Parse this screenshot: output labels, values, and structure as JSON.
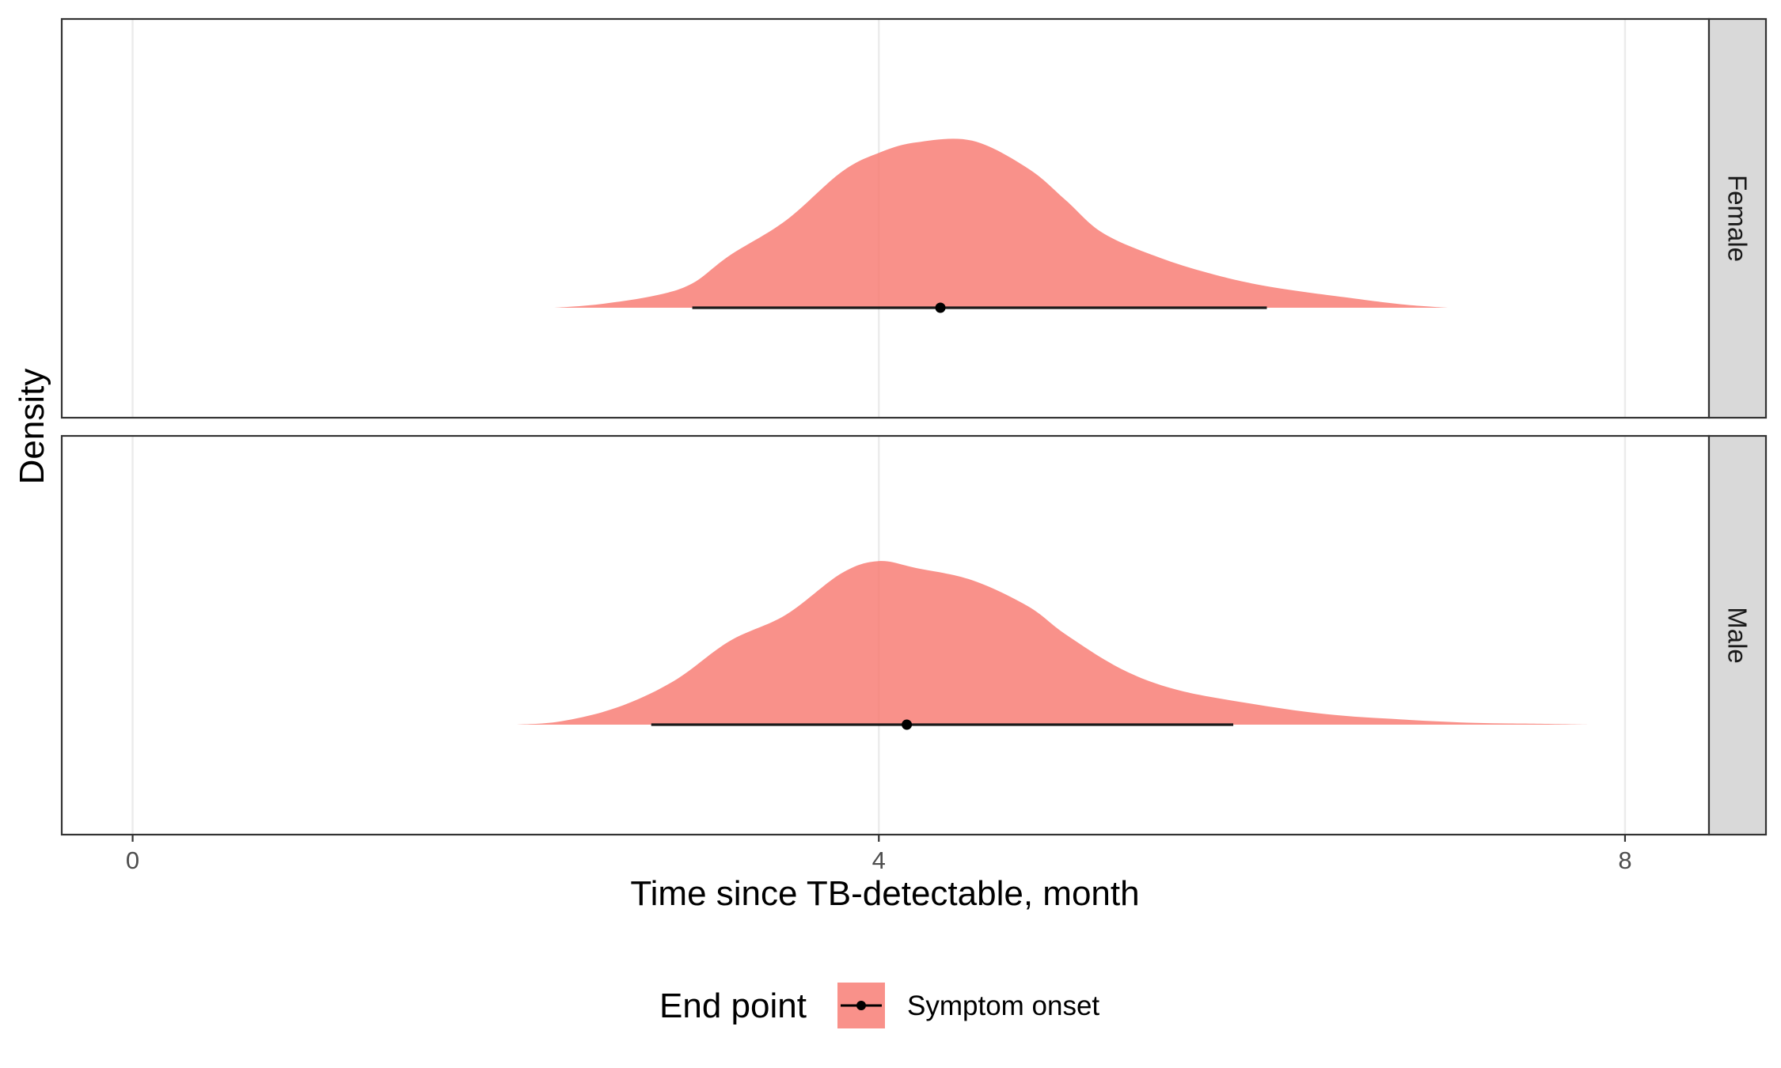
{
  "chart_data": {
    "type": "area",
    "subtype": "half-eye density (ridgeline)",
    "xlabel": "Time since TB-detectable, month",
    "ylabel": "Density",
    "xlim": [
      -0.38,
      8.45
    ],
    "xticks": [
      0,
      4,
      8
    ],
    "grid": true,
    "legend": {
      "title": "End point",
      "position": "bottom",
      "items": [
        {
          "label": "Symptom onset",
          "color": "#F8766D"
        }
      ]
    },
    "series": [
      {
        "facet": "Female",
        "fill_color": "#F8766D",
        "fill_opacity": 0.8,
        "point": 4.33,
        "interval": [
          3.0,
          6.08
        ],
        "density": {
          "x": [
            2.26,
            2.5,
            2.8,
            3.0,
            3.2,
            3.5,
            3.8,
            4.0,
            4.2,
            4.5,
            4.8,
            5.0,
            5.2,
            5.5,
            5.8,
            6.1,
            6.5,
            6.8,
            7.05
          ],
          "y": [
            0.0,
            0.02,
            0.07,
            0.14,
            0.3,
            0.5,
            0.78,
            0.89,
            0.95,
            0.96,
            0.8,
            0.62,
            0.43,
            0.29,
            0.19,
            0.12,
            0.06,
            0.02,
            0.0
          ]
        }
      },
      {
        "facet": "Male",
        "fill_color": "#F8766D",
        "fill_opacity": 0.8,
        "point": 4.15,
        "interval": [
          2.78,
          5.9
        ],
        "density": {
          "x": [
            2.06,
            2.3,
            2.6,
            2.9,
            3.2,
            3.5,
            3.8,
            4.0,
            4.2,
            4.5,
            4.8,
            5.0,
            5.3,
            5.6,
            6.0,
            6.4,
            6.8,
            7.2,
            7.55,
            7.8
          ],
          "y": [
            0.0,
            0.02,
            0.1,
            0.25,
            0.48,
            0.63,
            0.87,
            0.94,
            0.9,
            0.83,
            0.68,
            0.52,
            0.32,
            0.2,
            0.12,
            0.06,
            0.03,
            0.01,
            0.005,
            0.0
          ]
        }
      }
    ]
  }
}
